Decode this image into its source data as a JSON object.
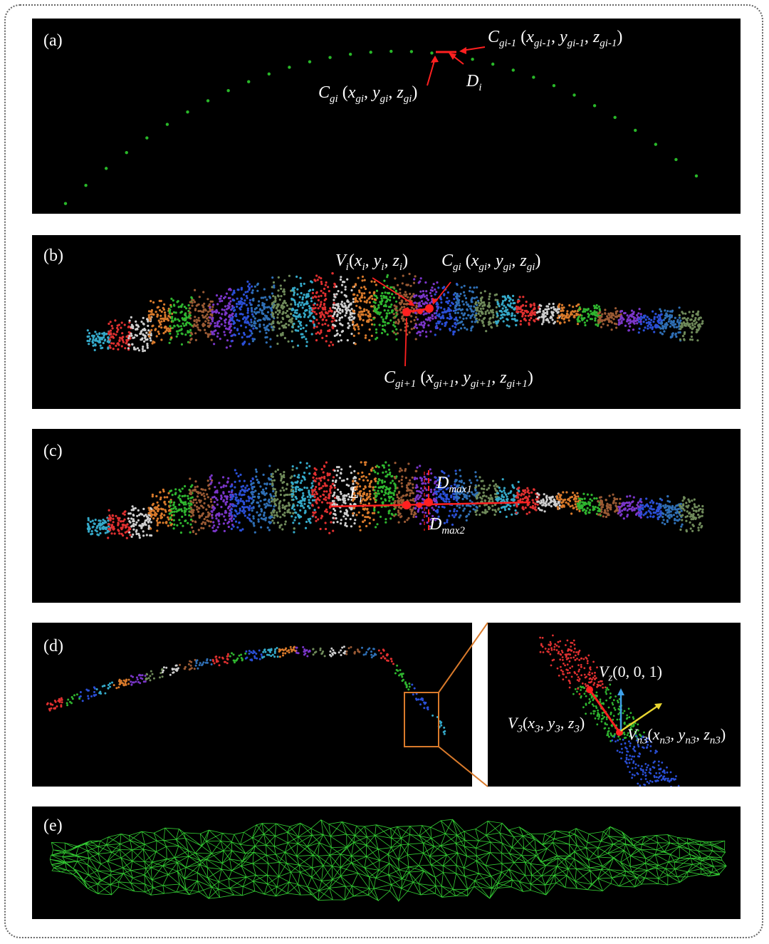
{
  "colors": {
    "background": "#000000",
    "annotation": "#ff2020",
    "mesh": "#33cc33",
    "cluster_palette": [
      "#e03030",
      "#2fb52f",
      "#2a4fd6",
      "#35a9c9",
      "#d97a2b",
      "#7a36c9",
      "#6f8a5a",
      "#cfcfcf",
      "#9a5a34",
      "#2f6fb5"
    ]
  },
  "panels": {
    "a": {
      "label": "(a)",
      "c_prev": "C_gi-1 (x_gi-1, y_gi-1, z_gi-1)",
      "c_cur": "C_gi (x_gi, y_gi, z_gi)",
      "dist": "D_i"
    },
    "b": {
      "label": "(b)",
      "vertex": "V_i(x_i, y_i, z_i)",
      "c_cur": "C_gi (x_gi, y_gi, z_gi)",
      "c_next": "C_gi+1 (x_gi+1, y_gi+1, z_gi+1)"
    },
    "c": {
      "label": "(c)",
      "length": "L_i",
      "dmax1": "D_max1",
      "dmax2": "D_max2"
    },
    "d": {
      "label": "(d)",
      "vz": "V_z(0, 0, 1)",
      "v3": "V_3(x_3, y_3, z_3)",
      "vn3": "V_n3(x_n3, y_n3, z_n3)"
    },
    "e": {
      "label": "(e)"
    }
  }
}
